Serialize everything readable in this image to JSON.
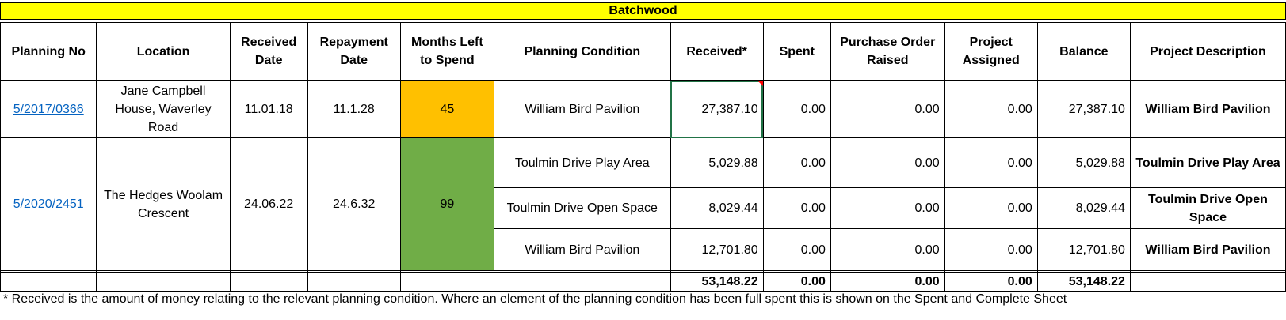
{
  "title": "Batchwood",
  "headers": [
    "Planning No",
    "Location",
    "Received Date",
    "Repayment Date",
    "Months Left to Spend",
    "Planning Condition",
    "Received*",
    "Spent",
    "Purchase Order Raised",
    "Project Assigned",
    "Balance",
    "Project Description"
  ],
  "row1": {
    "planning_no": "5/2017/0366",
    "location": "Jane Campbell House, Waverley Road",
    "received_date": "11.01.18",
    "repayment_date": "11.1.28",
    "months_left": "45",
    "condition": "William Bird Pavilion",
    "received": "27,387.10",
    "spent": "0.00",
    "po_raised": "0.00",
    "project_assigned": "0.00",
    "balance": "27,387.10",
    "description": "William Bird Pavilion"
  },
  "row2": {
    "planning_no": "5/2020/2451",
    "location": "The Hedges Woolam Crescent",
    "received_date": "24.06.22",
    "repayment_date": "24.6.32",
    "months_left": "99",
    "conditions": [
      {
        "condition": "Toulmin Drive Play Area",
        "received": "5,029.88",
        "spent": "0.00",
        "po_raised": "0.00",
        "project_assigned": "0.00",
        "balance": "5,029.88",
        "description": "Toulmin Drive Play Area"
      },
      {
        "condition": "Toulmin Drive Open Space",
        "received": "8,029.44",
        "spent": "0.00",
        "po_raised": "0.00",
        "project_assigned": "0.00",
        "balance": "8,029.44",
        "description": "Toulmin Drive Open Space"
      },
      {
        "condition": "William Bird Pavilion",
        "received": "12,701.80",
        "spent": "0.00",
        "po_raised": "0.00",
        "project_assigned": "0.00",
        "balance": "12,701.80",
        "description": "William Bird Pavilion"
      }
    ]
  },
  "totals": {
    "received": "53,148.22",
    "spent": "0.00",
    "po_raised": "0.00",
    "project_assigned": "0.00",
    "balance": "53,148.22"
  },
  "footnote": "* Received is the amount of money relating to the relevant planning condition. Where an element of the planning condition has been full spent this is shown on the Spent and Complete Sheet",
  "colors": {
    "banner": "#ffff00",
    "months_amber": "#ffc000",
    "months_green": "#70ad47",
    "link": "#0563c1"
  }
}
